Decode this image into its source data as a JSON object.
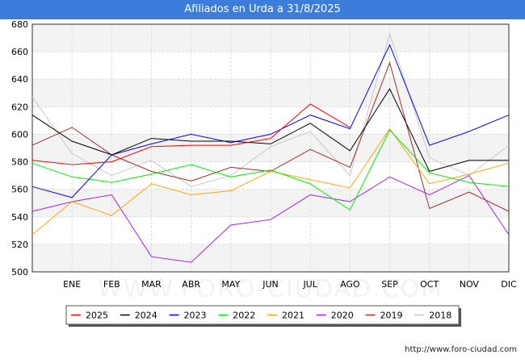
{
  "chart_data": {
    "type": "line",
    "title": "Afiliados en Urda a 31/8/2025",
    "xlabel": "",
    "ylabel": "",
    "categories": [
      "",
      "ENE",
      "FEB",
      "MAR",
      "ABR",
      "MAY",
      "JUN",
      "JUL",
      "AGO",
      "SEP",
      "OCT",
      "NOV",
      "DIC"
    ],
    "ylim": [
      500,
      680
    ],
    "yticks": [
      500,
      520,
      540,
      560,
      580,
      600,
      620,
      640,
      660,
      680
    ],
    "grid": true,
    "legend_position": "bottom",
    "series": [
      {
        "name": "2025",
        "color": "#ff0000",
        "values": [
          581,
          578,
          580,
          591,
          592,
          592,
          597,
          622,
          605,
          null,
          null,
          null,
          null
        ]
      },
      {
        "name": "2024",
        "color": "#000000",
        "values": [
          614,
          595,
          585,
          597,
          595,
          595,
          593,
          608,
          588,
          633,
          573,
          581,
          581
        ]
      },
      {
        "name": "2023",
        "color": "#0000ff",
        "values": [
          562,
          554,
          585,
          593,
          600,
          594,
          600,
          614,
          604,
          665,
          592,
          602,
          614
        ]
      },
      {
        "name": "2022",
        "color": "#00ee00",
        "values": [
          579,
          569,
          565,
          571,
          578,
          569,
          574,
          564,
          545,
          603,
          572,
          565,
          562
        ]
      },
      {
        "name": "2021",
        "color": "#ffa500",
        "values": [
          527,
          551,
          541,
          564,
          556,
          559,
          573,
          567,
          561,
          604,
          564,
          571,
          579
        ]
      },
      {
        "name": "2020",
        "color": "#a020f0",
        "values": [
          544,
          551,
          556,
          511,
          507,
          534,
          538,
          556,
          551,
          569,
          556,
          570,
          527
        ]
      },
      {
        "name": "2019",
        "color": "#a52a2a",
        "values": [
          592,
          605,
          585,
          573,
          566,
          576,
          573,
          589,
          576,
          652,
          546,
          558,
          544
        ]
      },
      {
        "name": "2018",
        "color": "#c8c8c8",
        "values": [
          627,
          586,
          570,
          581,
          562,
          570,
          591,
          602,
          570,
          673,
          583,
          570,
          592
        ]
      }
    ]
  },
  "watermark": "WWW.FORO-CIUDAD.COM",
  "credit": "http://www.foro-ciudad.com"
}
